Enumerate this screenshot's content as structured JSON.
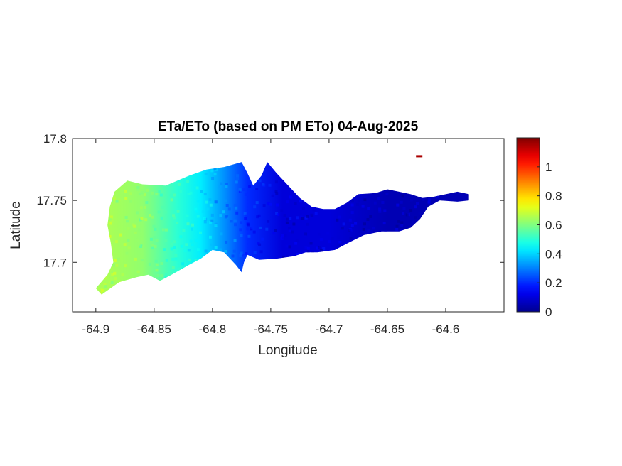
{
  "chart_data": {
    "type": "heatmap",
    "title": "ETa/ETo (based on PM ETo) 04-Aug-2025",
    "xlabel": "Longitude",
    "ylabel": "Latitude",
    "xlim": [
      -64.92,
      -64.55
    ],
    "ylim": [
      17.66,
      17.8
    ],
    "xticks": [
      -64.9,
      -64.85,
      -64.8,
      -64.75,
      -64.7,
      -64.65,
      -64.6
    ],
    "xtick_labels": [
      "-64.9",
      "-64.85",
      "-64.8",
      "-64.75",
      "-64.7",
      "-64.65",
      "-64.6"
    ],
    "yticks": [
      17.7,
      17.75,
      17.8
    ],
    "ytick_labels": [
      "17.7",
      "17.75",
      "17.8"
    ],
    "colorbar": {
      "colormap": "jet",
      "range": [
        0,
        1.2
      ],
      "ticks": [
        0,
        0.2,
        0.4,
        0.6,
        0.8,
        1
      ],
      "tick_labels": [
        "0",
        "0.2",
        "0.4",
        "0.6",
        "0.8",
        "1"
      ],
      "location": "right"
    },
    "value_gradient_along_longitude": [
      {
        "lon": -64.89,
        "value": 0.65
      },
      {
        "lon": -64.86,
        "value": 0.62
      },
      {
        "lon": -64.83,
        "value": 0.5
      },
      {
        "lon": -64.81,
        "value": 0.43
      },
      {
        "lon": -64.79,
        "value": 0.32
      },
      {
        "lon": -64.77,
        "value": 0.2
      },
      {
        "lon": -64.74,
        "value": 0.1
      },
      {
        "lon": -64.7,
        "value": 0.1
      },
      {
        "lon": -64.65,
        "value": 0.05
      },
      {
        "lon": -64.6,
        "value": 0.05
      }
    ],
    "region_outline": [
      [
        -64.9,
        17.679
      ],
      [
        -64.89,
        17.69
      ],
      [
        -64.885,
        17.7
      ],
      [
        -64.887,
        17.715
      ],
      [
        -64.89,
        17.73
      ],
      [
        -64.888,
        17.745
      ],
      [
        -64.884,
        17.757
      ],
      [
        -64.873,
        17.766
      ],
      [
        -64.86,
        17.763
      ],
      [
        -64.84,
        17.762
      ],
      [
        -64.82,
        17.77
      ],
      [
        -64.805,
        17.775
      ],
      [
        -64.79,
        17.777
      ],
      [
        -64.775,
        17.781
      ],
      [
        -64.77,
        17.772
      ],
      [
        -64.765,
        17.762
      ],
      [
        -64.758,
        17.77
      ],
      [
        -64.753,
        17.781
      ],
      [
        -64.745,
        17.772
      ],
      [
        -64.735,
        17.762
      ],
      [
        -64.725,
        17.752
      ],
      [
        -64.715,
        17.745
      ],
      [
        -64.705,
        17.743
      ],
      [
        -64.695,
        17.743
      ],
      [
        -64.685,
        17.748
      ],
      [
        -64.675,
        17.755
      ],
      [
        -64.66,
        17.756
      ],
      [
        -64.65,
        17.759
      ],
      [
        -64.64,
        17.757
      ],
      [
        -64.63,
        17.755
      ],
      [
        -64.62,
        17.752
      ],
      [
        -64.61,
        17.753
      ],
      [
        -64.6,
        17.755
      ],
      [
        -64.59,
        17.757
      ],
      [
        -64.58,
        17.755
      ],
      [
        -64.58,
        17.75
      ],
      [
        -64.59,
        17.749
      ],
      [
        -64.605,
        17.75
      ],
      [
        -64.615,
        17.745
      ],
      [
        -64.622,
        17.735
      ],
      [
        -64.63,
        17.728
      ],
      [
        -64.64,
        17.725
      ],
      [
        -64.655,
        17.725
      ],
      [
        -64.67,
        17.722
      ],
      [
        -64.685,
        17.715
      ],
      [
        -64.695,
        17.71
      ],
      [
        -64.71,
        17.708
      ],
      [
        -64.72,
        17.708
      ],
      [
        -64.73,
        17.705
      ],
      [
        -64.745,
        17.703
      ],
      [
        -64.76,
        17.702
      ],
      [
        -64.77,
        17.706
      ],
      [
        -64.773,
        17.7
      ],
      [
        -64.775,
        17.692
      ],
      [
        -64.78,
        17.698
      ],
      [
        -64.79,
        17.708
      ],
      [
        -64.8,
        17.71
      ],
      [
        -64.81,
        17.703
      ],
      [
        -64.82,
        17.698
      ],
      [
        -64.835,
        17.69
      ],
      [
        -64.845,
        17.685
      ],
      [
        -64.855,
        17.69
      ],
      [
        -64.865,
        17.688
      ],
      [
        -64.88,
        17.684
      ],
      [
        -64.895,
        17.674
      ],
      [
        -64.9,
        17.679
      ]
    ],
    "islet": [
      -64.623,
      17.786
    ]
  }
}
